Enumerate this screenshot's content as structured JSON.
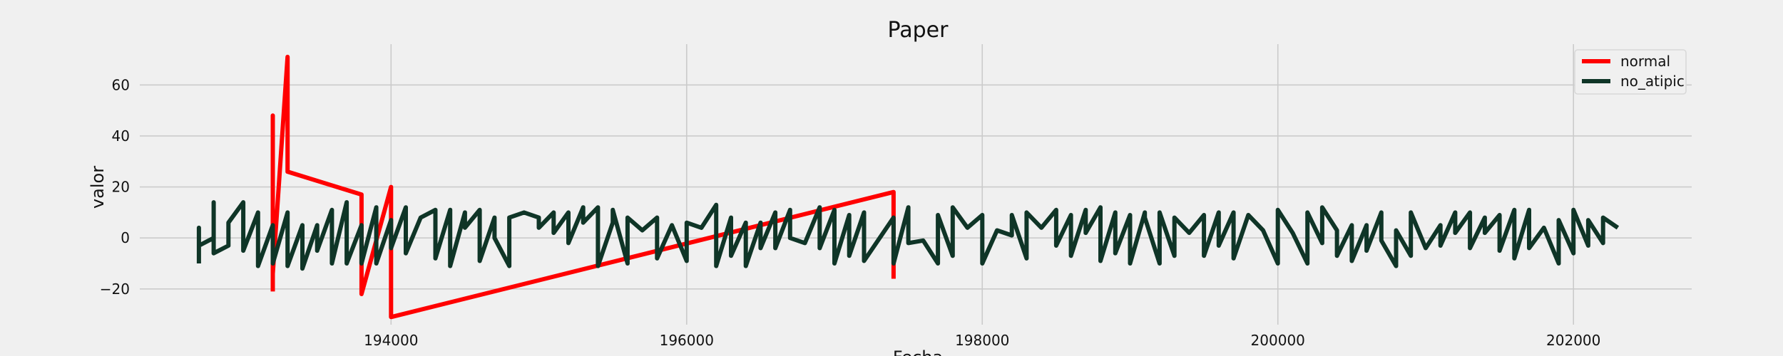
{
  "chart_data": {
    "type": "line",
    "title": "Paper",
    "xlabel": "Fecha",
    "ylabel": "valor",
    "xlim": [
      192300,
      202800
    ],
    "ylim": [
      -34,
      76
    ],
    "xticks": [
      194000,
      196000,
      198000,
      200000,
      202000
    ],
    "xtick_labels": [
      "194000",
      "196000",
      "198000",
      "200000",
      "202000"
    ],
    "yticks": [
      -20,
      0,
      20,
      40,
      60
    ],
    "ytick_labels": [
      "−20",
      "0",
      "20",
      "40",
      "60"
    ],
    "grid": true,
    "legend_position": "top-right",
    "series": [
      {
        "name": "normal",
        "color": "#ff0000",
        "points": [
          [
            193200,
            -21
          ],
          [
            193200,
            48
          ],
          [
            193200,
            -14
          ],
          [
            193300,
            71
          ],
          [
            193300,
            26
          ],
          [
            193800,
            17
          ],
          [
            193800,
            -22
          ],
          [
            194000,
            20
          ],
          [
            194000,
            -31
          ],
          [
            197400,
            18
          ],
          [
            197400,
            -16
          ]
        ]
      },
      {
        "name": "no_atipic",
        "color": "#0f3527",
        "points": [
          [
            192700,
            -10
          ],
          [
            192700,
            4
          ],
          [
            192700,
            -3
          ],
          [
            192800,
            0
          ],
          [
            192800,
            14
          ],
          [
            192800,
            -6
          ],
          [
            192900,
            -3
          ],
          [
            192900,
            6
          ],
          [
            193000,
            14
          ],
          [
            193000,
            -5
          ],
          [
            193100,
            10
          ],
          [
            193100,
            -11
          ],
          [
            193200,
            5
          ],
          [
            193200,
            -10
          ],
          [
            193300,
            10
          ],
          [
            193300,
            -11
          ],
          [
            193400,
            5
          ],
          [
            193400,
            -12
          ],
          [
            193500,
            5
          ],
          [
            193500,
            -5
          ],
          [
            193600,
            11
          ],
          [
            193600,
            -10
          ],
          [
            193700,
            14
          ],
          [
            193700,
            -10
          ],
          [
            193800,
            5
          ],
          [
            193800,
            -10
          ],
          [
            193900,
            12
          ],
          [
            193900,
            -10
          ],
          [
            194000,
            7
          ],
          [
            194000,
            -4
          ],
          [
            194100,
            12
          ],
          [
            194100,
            -6
          ],
          [
            194200,
            8
          ],
          [
            194300,
            11
          ],
          [
            194300,
            -8
          ],
          [
            194400,
            11
          ],
          [
            194400,
            -11
          ],
          [
            194500,
            10
          ],
          [
            194500,
            4
          ],
          [
            194600,
            11
          ],
          [
            194600,
            -9
          ],
          [
            194700,
            8
          ],
          [
            194700,
            0
          ],
          [
            194800,
            -11
          ],
          [
            194800,
            8
          ],
          [
            194900,
            10
          ],
          [
            195000,
            8
          ],
          [
            195000,
            4
          ],
          [
            195100,
            10
          ],
          [
            195100,
            2
          ],
          [
            195200,
            10
          ],
          [
            195200,
            -2
          ],
          [
            195300,
            12
          ],
          [
            195300,
            6
          ],
          [
            195400,
            12
          ],
          [
            195400,
            -11
          ],
          [
            195500,
            6
          ],
          [
            195500,
            11
          ],
          [
            195600,
            -10
          ],
          [
            195600,
            8
          ],
          [
            195700,
            3
          ],
          [
            195800,
            8
          ],
          [
            195800,
            -8
          ],
          [
            195900,
            5
          ],
          [
            196000,
            -9
          ],
          [
            196000,
            6
          ],
          [
            196100,
            4
          ],
          [
            196200,
            13
          ],
          [
            196200,
            -11
          ],
          [
            196300,
            8
          ],
          [
            196300,
            -7
          ],
          [
            196400,
            6
          ],
          [
            196400,
            -11
          ],
          [
            196500,
            6
          ],
          [
            196500,
            -4
          ],
          [
            196600,
            10
          ],
          [
            196600,
            -4
          ],
          [
            196700,
            11
          ],
          [
            196700,
            0
          ],
          [
            196800,
            -2
          ],
          [
            196900,
            12
          ],
          [
            196900,
            -4
          ],
          [
            197000,
            11
          ],
          [
            197000,
            -10
          ],
          [
            197100,
            9
          ],
          [
            197100,
            -7
          ],
          [
            197200,
            10
          ],
          [
            197200,
            -9
          ],
          [
            197400,
            8
          ],
          [
            197400,
            -10
          ],
          [
            197500,
            12
          ],
          [
            197500,
            -2
          ],
          [
            197600,
            -1
          ],
          [
            197700,
            -10
          ],
          [
            197700,
            9
          ],
          [
            197800,
            -7
          ],
          [
            197800,
            12
          ],
          [
            197900,
            4
          ],
          [
            198000,
            9
          ],
          [
            198000,
            -10
          ],
          [
            198100,
            3
          ],
          [
            198200,
            1
          ],
          [
            198200,
            9
          ],
          [
            198300,
            -8
          ],
          [
            198300,
            10
          ],
          [
            198400,
            4
          ],
          [
            198500,
            11
          ],
          [
            198500,
            -3
          ],
          [
            198600,
            9
          ],
          [
            198600,
            -7
          ],
          [
            198700,
            11
          ],
          [
            198700,
            2
          ],
          [
            198800,
            12
          ],
          [
            198800,
            -9
          ],
          [
            198900,
            10
          ],
          [
            198900,
            -6
          ],
          [
            199000,
            9
          ],
          [
            199000,
            -10
          ],
          [
            199100,
            10
          ],
          [
            199100,
            8
          ],
          [
            199200,
            -10
          ],
          [
            199200,
            10
          ],
          [
            199300,
            -7
          ],
          [
            199300,
            8
          ],
          [
            199400,
            2
          ],
          [
            199500,
            9
          ],
          [
            199500,
            -7
          ],
          [
            199600,
            10
          ],
          [
            199600,
            -3
          ],
          [
            199700,
            10
          ],
          [
            199700,
            -8
          ],
          [
            199800,
            9
          ],
          [
            199900,
            3
          ],
          [
            200000,
            -10
          ],
          [
            200000,
            11
          ],
          [
            200100,
            2
          ],
          [
            200200,
            -10
          ],
          [
            200200,
            10
          ],
          [
            200300,
            -2
          ],
          [
            200300,
            12
          ],
          [
            200400,
            3
          ],
          [
            200400,
            -7
          ],
          [
            200500,
            5
          ],
          [
            200500,
            -9
          ],
          [
            200600,
            5
          ],
          [
            200600,
            -5
          ],
          [
            200700,
            10
          ],
          [
            200700,
            -1
          ],
          [
            200800,
            -11
          ],
          [
            200800,
            3
          ],
          [
            200900,
            -7
          ],
          [
            200900,
            10
          ],
          [
            201000,
            -4
          ],
          [
            201100,
            5
          ],
          [
            201100,
            -3
          ],
          [
            201200,
            10
          ],
          [
            201200,
            2
          ],
          [
            201300,
            10
          ],
          [
            201300,
            -4
          ],
          [
            201400,
            8
          ],
          [
            201400,
            2
          ],
          [
            201500,
            9
          ],
          [
            201500,
            -5
          ],
          [
            201600,
            11
          ],
          [
            201600,
            -8
          ],
          [
            201700,
            11
          ],
          [
            201700,
            -4
          ],
          [
            201800,
            4
          ],
          [
            201900,
            -10
          ],
          [
            201900,
            7
          ],
          [
            202000,
            -6
          ],
          [
            202000,
            11
          ],
          [
            202100,
            -3
          ],
          [
            202100,
            7
          ],
          [
            202200,
            -2
          ],
          [
            202200,
            8
          ],
          [
            202300,
            4
          ]
        ]
      }
    ]
  }
}
